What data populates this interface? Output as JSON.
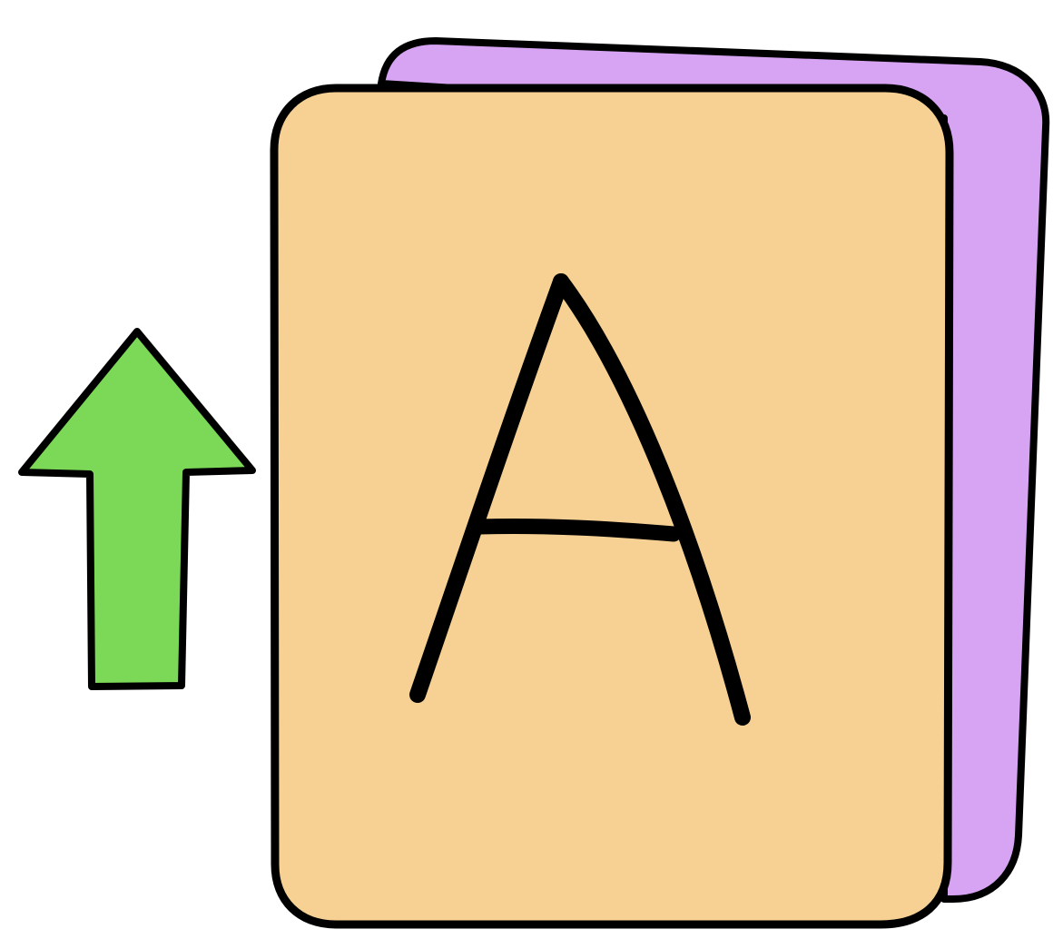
{
  "icon": {
    "name": "sort-ascending-icon",
    "card_letter": "A",
    "colors": {
      "front_card": "#F6D193",
      "back_card": "#D7A3F3",
      "arrow": "#7CD957",
      "outline": "#000000",
      "background": "#FFFFFF"
    }
  }
}
